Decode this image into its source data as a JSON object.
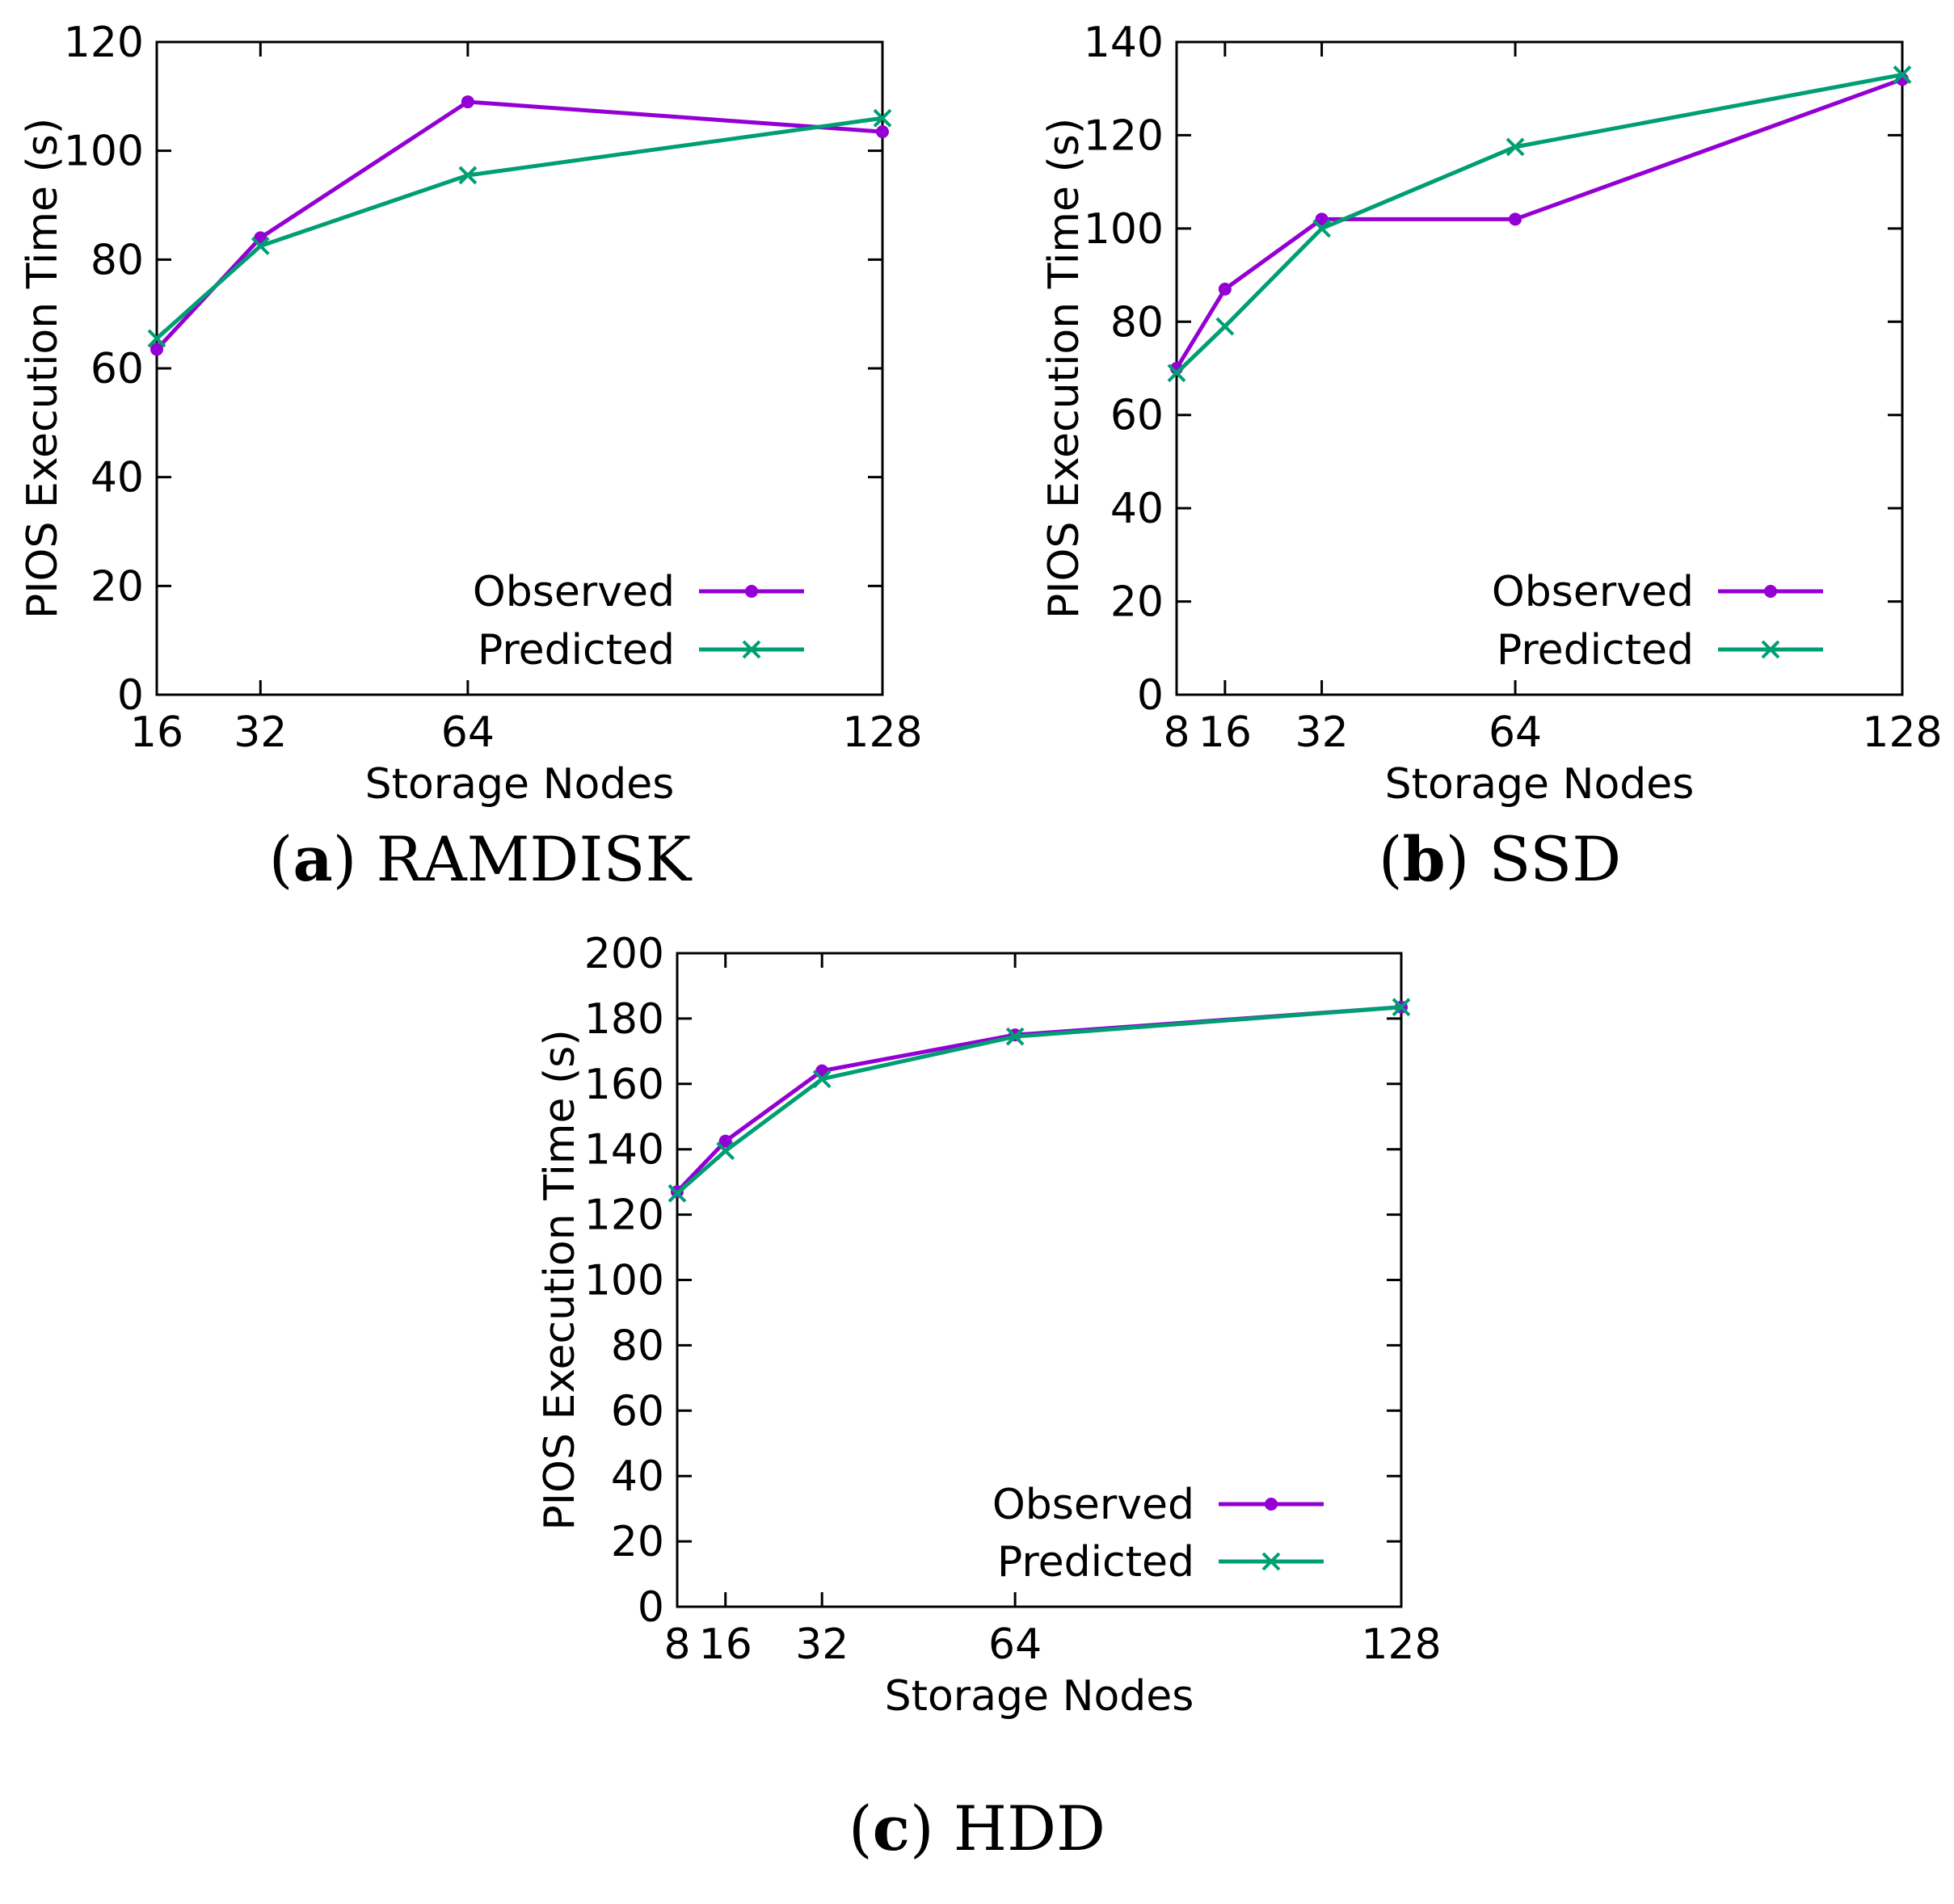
{
  "colors": {
    "observed": "#9400d3",
    "predicted": "#009e73",
    "axis": "#000000"
  },
  "chart_data": [
    {
      "type": "line",
      "caption_letter": "a",
      "caption_text": "RAMDISK",
      "xlabel": "Storage Nodes",
      "ylabel": "PIOS Execution Time (s)",
      "x_ticks": [
        16,
        32,
        64,
        128
      ],
      "xlim": [
        16,
        128
      ],
      "ylim": [
        0,
        120
      ],
      "y_ticks": [
        0,
        20,
        40,
        60,
        80,
        100,
        120
      ],
      "legend": "bottom-right",
      "series": [
        {
          "name": "Observed",
          "x": [
            16,
            32,
            64,
            128
          ],
          "values": [
            63.5,
            84,
            109,
            103.5
          ]
        },
        {
          "name": "Predicted",
          "x": [
            16,
            32,
            64,
            128
          ],
          "values": [
            65.5,
            82.5,
            95.5,
            106
          ]
        }
      ]
    },
    {
      "type": "line",
      "caption_letter": "b",
      "caption_text": "SSD",
      "xlabel": "Storage Nodes",
      "ylabel": "PIOS Execution Time (s)",
      "x_ticks": [
        8,
        16,
        32,
        64,
        128
      ],
      "xlim": [
        8,
        128
      ],
      "ylim": [
        0,
        140
      ],
      "y_ticks": [
        0,
        20,
        40,
        60,
        80,
        100,
        120,
        140
      ],
      "legend": "bottom-right",
      "series": [
        {
          "name": "Observed",
          "x": [
            8,
            16,
            32,
            64,
            128
          ],
          "values": [
            70,
            87,
            102,
            102,
            132
          ]
        },
        {
          "name": "Predicted",
          "x": [
            8,
            16,
            32,
            64,
            128
          ],
          "values": [
            69,
            79,
            100,
            117.5,
            133
          ]
        }
      ]
    },
    {
      "type": "line",
      "caption_letter": "c",
      "caption_text": "HDD",
      "xlabel": "Storage Nodes",
      "ylabel": "PIOS Execution Time (s)",
      "x_ticks": [
        8,
        16,
        32,
        64,
        128
      ],
      "xlim": [
        8,
        128
      ],
      "ylim": [
        0,
        200
      ],
      "y_ticks": [
        0,
        20,
        40,
        60,
        80,
        100,
        120,
        140,
        160,
        180,
        200
      ],
      "legend": "bottom-right",
      "series": [
        {
          "name": "Observed",
          "x": [
            8,
            16,
            32,
            64,
            128
          ],
          "values": [
            127,
            142.5,
            164,
            175,
            183.5
          ]
        },
        {
          "name": "Predicted",
          "x": [
            8,
            16,
            32,
            64,
            128
          ],
          "values": [
            126.5,
            139.5,
            161.5,
            174.5,
            183.5
          ]
        }
      ]
    }
  ]
}
